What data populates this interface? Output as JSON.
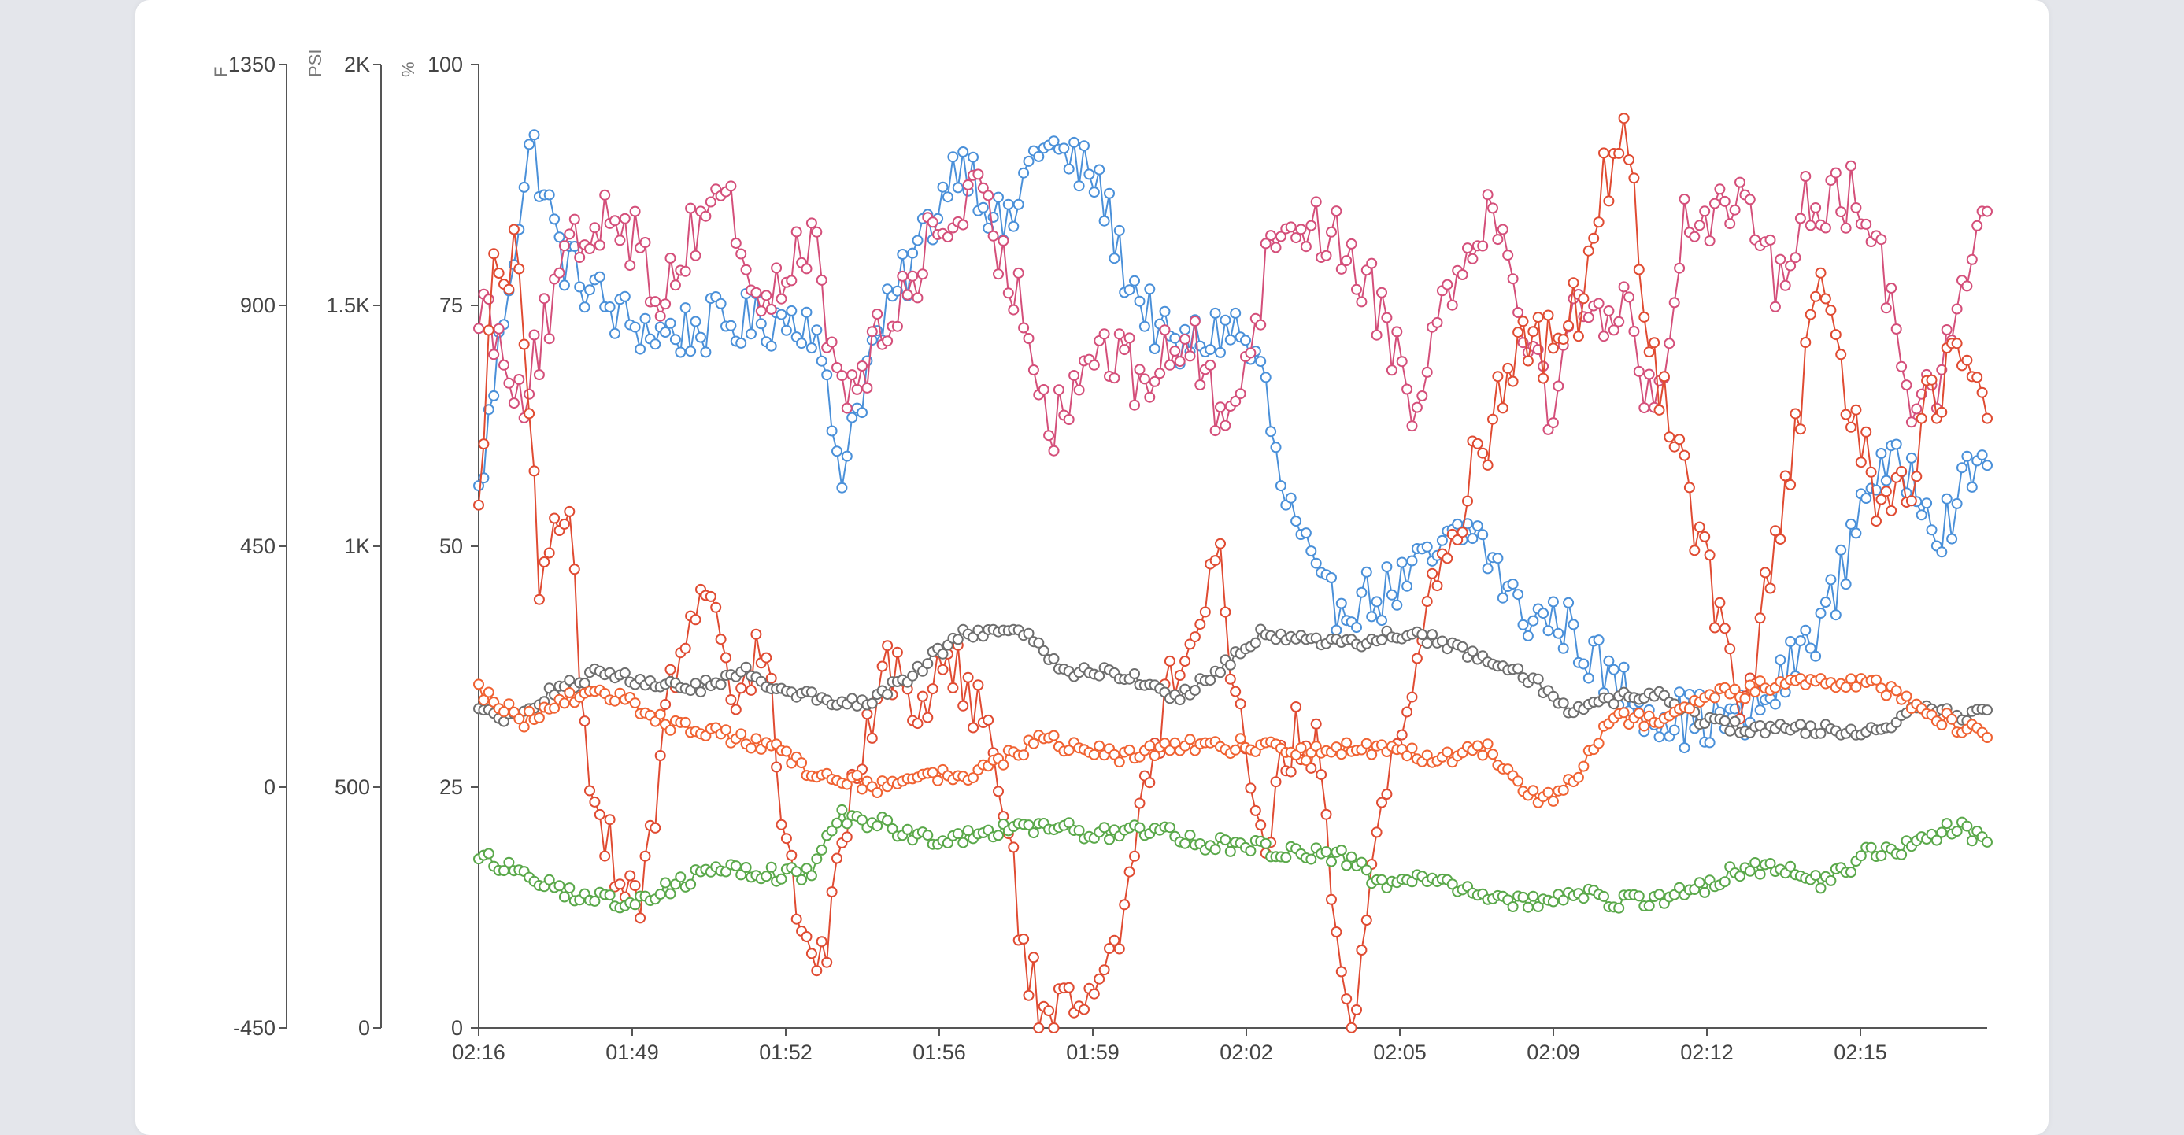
{
  "chart_data": {
    "type": "line",
    "x_ticks": [
      "02:16",
      "01:49",
      "01:52",
      "01:56",
      "01:59",
      "02:02",
      "02:05",
      "02:09",
      "02:12",
      "02:15"
    ],
    "axes": [
      {
        "id": "F",
        "unit": "F",
        "ticks": [
          "1350",
          "900",
          "450",
          "0",
          "-450"
        ],
        "range": [
          -450,
          1350
        ]
      },
      {
        "id": "PSI",
        "unit": "PSI",
        "ticks": [
          "2K",
          "1.5K",
          "1K",
          "500",
          "0"
        ],
        "range": [
          0,
          2000
        ]
      },
      {
        "id": "pct",
        "unit": "%",
        "ticks": [
          "100",
          "75",
          "50",
          "25",
          "0"
        ],
        "range": [
          0,
          100
        ]
      }
    ],
    "sample_count": 300,
    "grid": false,
    "series": [
      {
        "color": "#4a90d9",
        "axis": "pct",
        "anchors": [
          [
            0,
            55
          ],
          [
            0.02,
            78
          ],
          [
            0.035,
            92
          ],
          [
            0.055,
            80
          ],
          [
            0.09,
            74
          ],
          [
            0.12,
            72
          ],
          [
            0.16,
            73
          ],
          [
            0.22,
            74
          ],
          [
            0.24,
            58
          ],
          [
            0.26,
            70
          ],
          [
            0.3,
            84
          ],
          [
            0.32,
            91
          ],
          [
            0.35,
            82
          ],
          [
            0.37,
            92
          ],
          [
            0.41,
            88
          ],
          [
            0.43,
            78
          ],
          [
            0.46,
            70
          ],
          [
            0.5,
            73
          ],
          [
            0.52,
            68
          ],
          [
            0.53,
            57
          ],
          [
            0.56,
            44
          ],
          [
            0.6,
            45
          ],
          [
            0.62,
            47
          ],
          [
            0.66,
            52
          ],
          [
            0.69,
            43
          ],
          [
            0.72,
            42
          ],
          [
            0.75,
            36
          ],
          [
            0.78,
            33
          ],
          [
            0.8,
            32
          ],
          [
            0.84,
            32
          ],
          [
            0.86,
            35
          ],
          [
            0.88,
            40
          ],
          [
            0.9,
            45
          ],
          [
            0.92,
            57
          ],
          [
            0.95,
            58
          ],
          [
            0.97,
            52
          ],
          [
            1,
            60
          ]
        ]
      },
      {
        "color": "#d44f7a",
        "axis": "pct",
        "anchors": [
          [
            0,
            76
          ],
          [
            0.03,
            66
          ],
          [
            0.06,
            80
          ],
          [
            0.09,
            86
          ],
          [
            0.12,
            76
          ],
          [
            0.16,
            88
          ],
          [
            0.19,
            74
          ],
          [
            0.22,
            83
          ],
          [
            0.24,
            65
          ],
          [
            0.27,
            72
          ],
          [
            0.3,
            82
          ],
          [
            0.33,
            86
          ],
          [
            0.36,
            75
          ],
          [
            0.38,
            63
          ],
          [
            0.41,
            71
          ],
          [
            0.44,
            67
          ],
          [
            0.47,
            72
          ],
          [
            0.49,
            64
          ],
          [
            0.51,
            70
          ],
          [
            0.53,
            84
          ],
          [
            0.56,
            83
          ],
          [
            0.58,
            80
          ],
          [
            0.6,
            74
          ],
          [
            0.62,
            65
          ],
          [
            0.64,
            76
          ],
          [
            0.67,
            86
          ],
          [
            0.69,
            76
          ],
          [
            0.71,
            64
          ],
          [
            0.73,
            76
          ],
          [
            0.76,
            74
          ],
          [
            0.78,
            64
          ],
          [
            0.8,
            84
          ],
          [
            0.83,
            86
          ],
          [
            0.86,
            78
          ],
          [
            0.88,
            86
          ],
          [
            0.91,
            86
          ],
          [
            0.93,
            80
          ],
          [
            0.95,
            66
          ],
          [
            0.97,
            68
          ],
          [
            1,
            86
          ]
        ]
      },
      {
        "color": "#e04b32",
        "axis": "F",
        "anchors": [
          [
            0,
            550
          ],
          [
            0.01,
            950
          ],
          [
            0.025,
            1000
          ],
          [
            0.04,
            400
          ],
          [
            0.06,
            480
          ],
          [
            0.07,
            100
          ],
          [
            0.09,
            -150
          ],
          [
            0.11,
            -200
          ],
          [
            0.13,
            240
          ],
          [
            0.15,
            340
          ],
          [
            0.17,
            160
          ],
          [
            0.19,
            270
          ],
          [
            0.21,
            -250
          ],
          [
            0.23,
            -320
          ],
          [
            0.25,
            50
          ],
          [
            0.27,
            240
          ],
          [
            0.29,
            120
          ],
          [
            0.31,
            270
          ],
          [
            0.33,
            160
          ],
          [
            0.35,
            -50
          ],
          [
            0.36,
            -320
          ],
          [
            0.38,
            -450
          ],
          [
            0.41,
            -350
          ],
          [
            0.43,
            -200
          ],
          [
            0.45,
            100
          ],
          [
            0.47,
            300
          ],
          [
            0.49,
            450
          ],
          [
            0.5,
            200
          ],
          [
            0.52,
            -100
          ],
          [
            0.54,
            100
          ],
          [
            0.56,
            60
          ],
          [
            0.57,
            -380
          ],
          [
            0.58,
            -420
          ],
          [
            0.6,
            0
          ],
          [
            0.62,
            200
          ],
          [
            0.63,
            340
          ],
          [
            0.65,
            520
          ],
          [
            0.67,
            670
          ],
          [
            0.69,
            850
          ],
          [
            0.71,
            820
          ],
          [
            0.73,
            900
          ],
          [
            0.74,
            1100
          ],
          [
            0.76,
            1200
          ],
          [
            0.78,
            780
          ],
          [
            0.8,
            580
          ],
          [
            0.82,
            330
          ],
          [
            0.84,
            150
          ],
          [
            0.85,
            300
          ],
          [
            0.87,
            600
          ],
          [
            0.89,
            950
          ],
          [
            0.91,
            700
          ],
          [
            0.93,
            520
          ],
          [
            0.95,
            550
          ],
          [
            0.96,
            720
          ],
          [
            0.98,
            800
          ],
          [
            1,
            700
          ]
        ]
      },
      {
        "color": "#6e6e6e",
        "axis": "pct",
        "anchors": [
          [
            0,
            33
          ],
          [
            0.02,
            32
          ],
          [
            0.05,
            35
          ],
          [
            0.08,
            37
          ],
          [
            0.11,
            36
          ],
          [
            0.14,
            35
          ],
          [
            0.18,
            37
          ],
          [
            0.2,
            35
          ],
          [
            0.23,
            34
          ],
          [
            0.26,
            34
          ],
          [
            0.29,
            37
          ],
          [
            0.32,
            41
          ],
          [
            0.36,
            41
          ],
          [
            0.39,
            37
          ],
          [
            0.42,
            37
          ],
          [
            0.44,
            36
          ],
          [
            0.46,
            34
          ],
          [
            0.49,
            37
          ],
          [
            0.52,
            41
          ],
          [
            0.55,
            40
          ],
          [
            0.58,
            40
          ],
          [
            0.61,
            41
          ],
          [
            0.64,
            40
          ],
          [
            0.67,
            38
          ],
          [
            0.7,
            36
          ],
          [
            0.72,
            33
          ],
          [
            0.75,
            34
          ],
          [
            0.78,
            35
          ],
          [
            0.81,
            32
          ],
          [
            0.84,
            31
          ],
          [
            0.87,
            31
          ],
          [
            0.9,
            31
          ],
          [
            0.93,
            31
          ],
          [
            0.96,
            34
          ],
          [
            0.98,
            32
          ],
          [
            1,
            33
          ]
        ]
      },
      {
        "color": "#f06232",
        "axis": "PSI",
        "anchors": [
          [
            0,
            700
          ],
          [
            0.03,
            640
          ],
          [
            0.07,
            700
          ],
          [
            0.1,
            680
          ],
          [
            0.12,
            640
          ],
          [
            0.14,
            620
          ],
          [
            0.17,
            600
          ],
          [
            0.2,
            580
          ],
          [
            0.22,
            520
          ],
          [
            0.24,
            520
          ],
          [
            0.27,
            500
          ],
          [
            0.29,
            530
          ],
          [
            0.32,
            520
          ],
          [
            0.34,
            540
          ],
          [
            0.37,
            600
          ],
          [
            0.4,
            580
          ],
          [
            0.43,
            560
          ],
          [
            0.46,
            590
          ],
          [
            0.49,
            580
          ],
          [
            0.52,
            590
          ],
          [
            0.55,
            570
          ],
          [
            0.58,
            580
          ],
          [
            0.61,
            570
          ],
          [
            0.64,
            560
          ],
          [
            0.67,
            580
          ],
          [
            0.7,
            480
          ],
          [
            0.72,
            490
          ],
          [
            0.75,
            640
          ],
          [
            0.78,
            640
          ],
          [
            0.81,
            680
          ],
          [
            0.84,
            700
          ],
          [
            0.87,
            720
          ],
          [
            0.9,
            720
          ],
          [
            0.93,
            710
          ],
          [
            0.96,
            660
          ],
          [
            1,
            600
          ]
        ]
      },
      {
        "color": "#5aa84a",
        "axis": "pct",
        "anchors": [
          [
            0,
            18
          ],
          [
            0.03,
            16
          ],
          [
            0.06,
            14
          ],
          [
            0.09,
            13
          ],
          [
            0.12,
            14
          ],
          [
            0.16,
            17
          ],
          [
            0.19,
            16
          ],
          [
            0.22,
            16
          ],
          [
            0.24,
            22
          ],
          [
            0.27,
            21
          ],
          [
            0.31,
            19
          ],
          [
            0.35,
            21
          ],
          [
            0.38,
            21
          ],
          [
            0.41,
            20
          ],
          [
            0.45,
            21
          ],
          [
            0.48,
            19
          ],
          [
            0.51,
            19
          ],
          [
            0.54,
            18
          ],
          [
            0.57,
            18
          ],
          [
            0.6,
            15
          ],
          [
            0.63,
            16
          ],
          [
            0.66,
            14
          ],
          [
            0.7,
            13
          ],
          [
            0.73,
            14
          ],
          [
            0.76,
            13
          ],
          [
            0.8,
            14
          ],
          [
            0.83,
            16
          ],
          [
            0.86,
            17
          ],
          [
            0.89,
            15
          ],
          [
            0.92,
            18
          ],
          [
            0.95,
            19
          ],
          [
            0.98,
            21
          ],
          [
            1,
            19
          ]
        ]
      }
    ]
  }
}
